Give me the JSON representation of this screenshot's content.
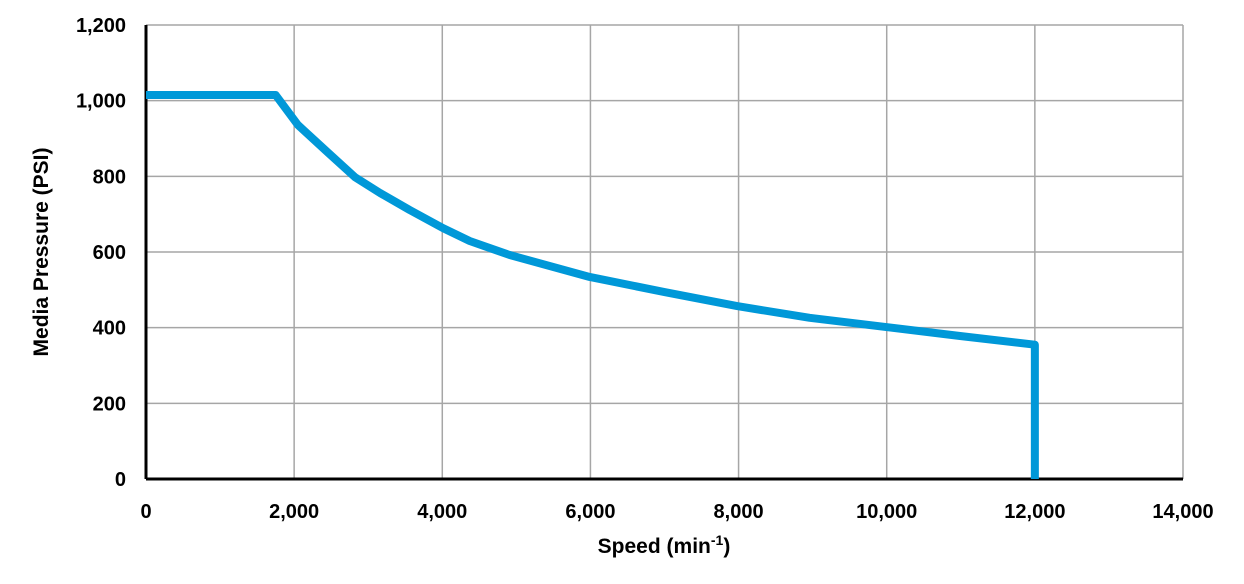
{
  "chart_data": {
    "type": "line",
    "title": "",
    "xlabel": "Speed (min",
    "xlabel_sup": "-1",
    "xlabel_suffix": ")",
    "ylabel": "Media Pressure (PSI)",
    "xlim": [
      0,
      14000
    ],
    "ylim": [
      0,
      1200
    ],
    "x_ticks": [
      "0",
      "2,000",
      "4,000",
      "6,000",
      "8,000",
      "10,000",
      "12,000",
      "14,000"
    ],
    "y_ticks": [
      "0",
      "200",
      "400",
      "600",
      "800",
      "1,000",
      "1,200"
    ],
    "grid": true,
    "legend": "none",
    "line_color": "#0098D8",
    "grid_color": "#A6A6A6",
    "series": [
      {
        "x": [
          0,
          1750,
          2050,
          2450,
          2820,
          3160,
          3560,
          4010,
          4370,
          4910,
          5990,
          7000,
          7980,
          8960,
          9980,
          10990,
          12000,
          12000
        ],
        "y": [
          1015,
          1015,
          936,
          864,
          798,
          756,
          711,
          663,
          629,
          592,
          534,
          494,
          457,
          426,
          402,
          378,
          355,
          0
        ]
      }
    ]
  }
}
